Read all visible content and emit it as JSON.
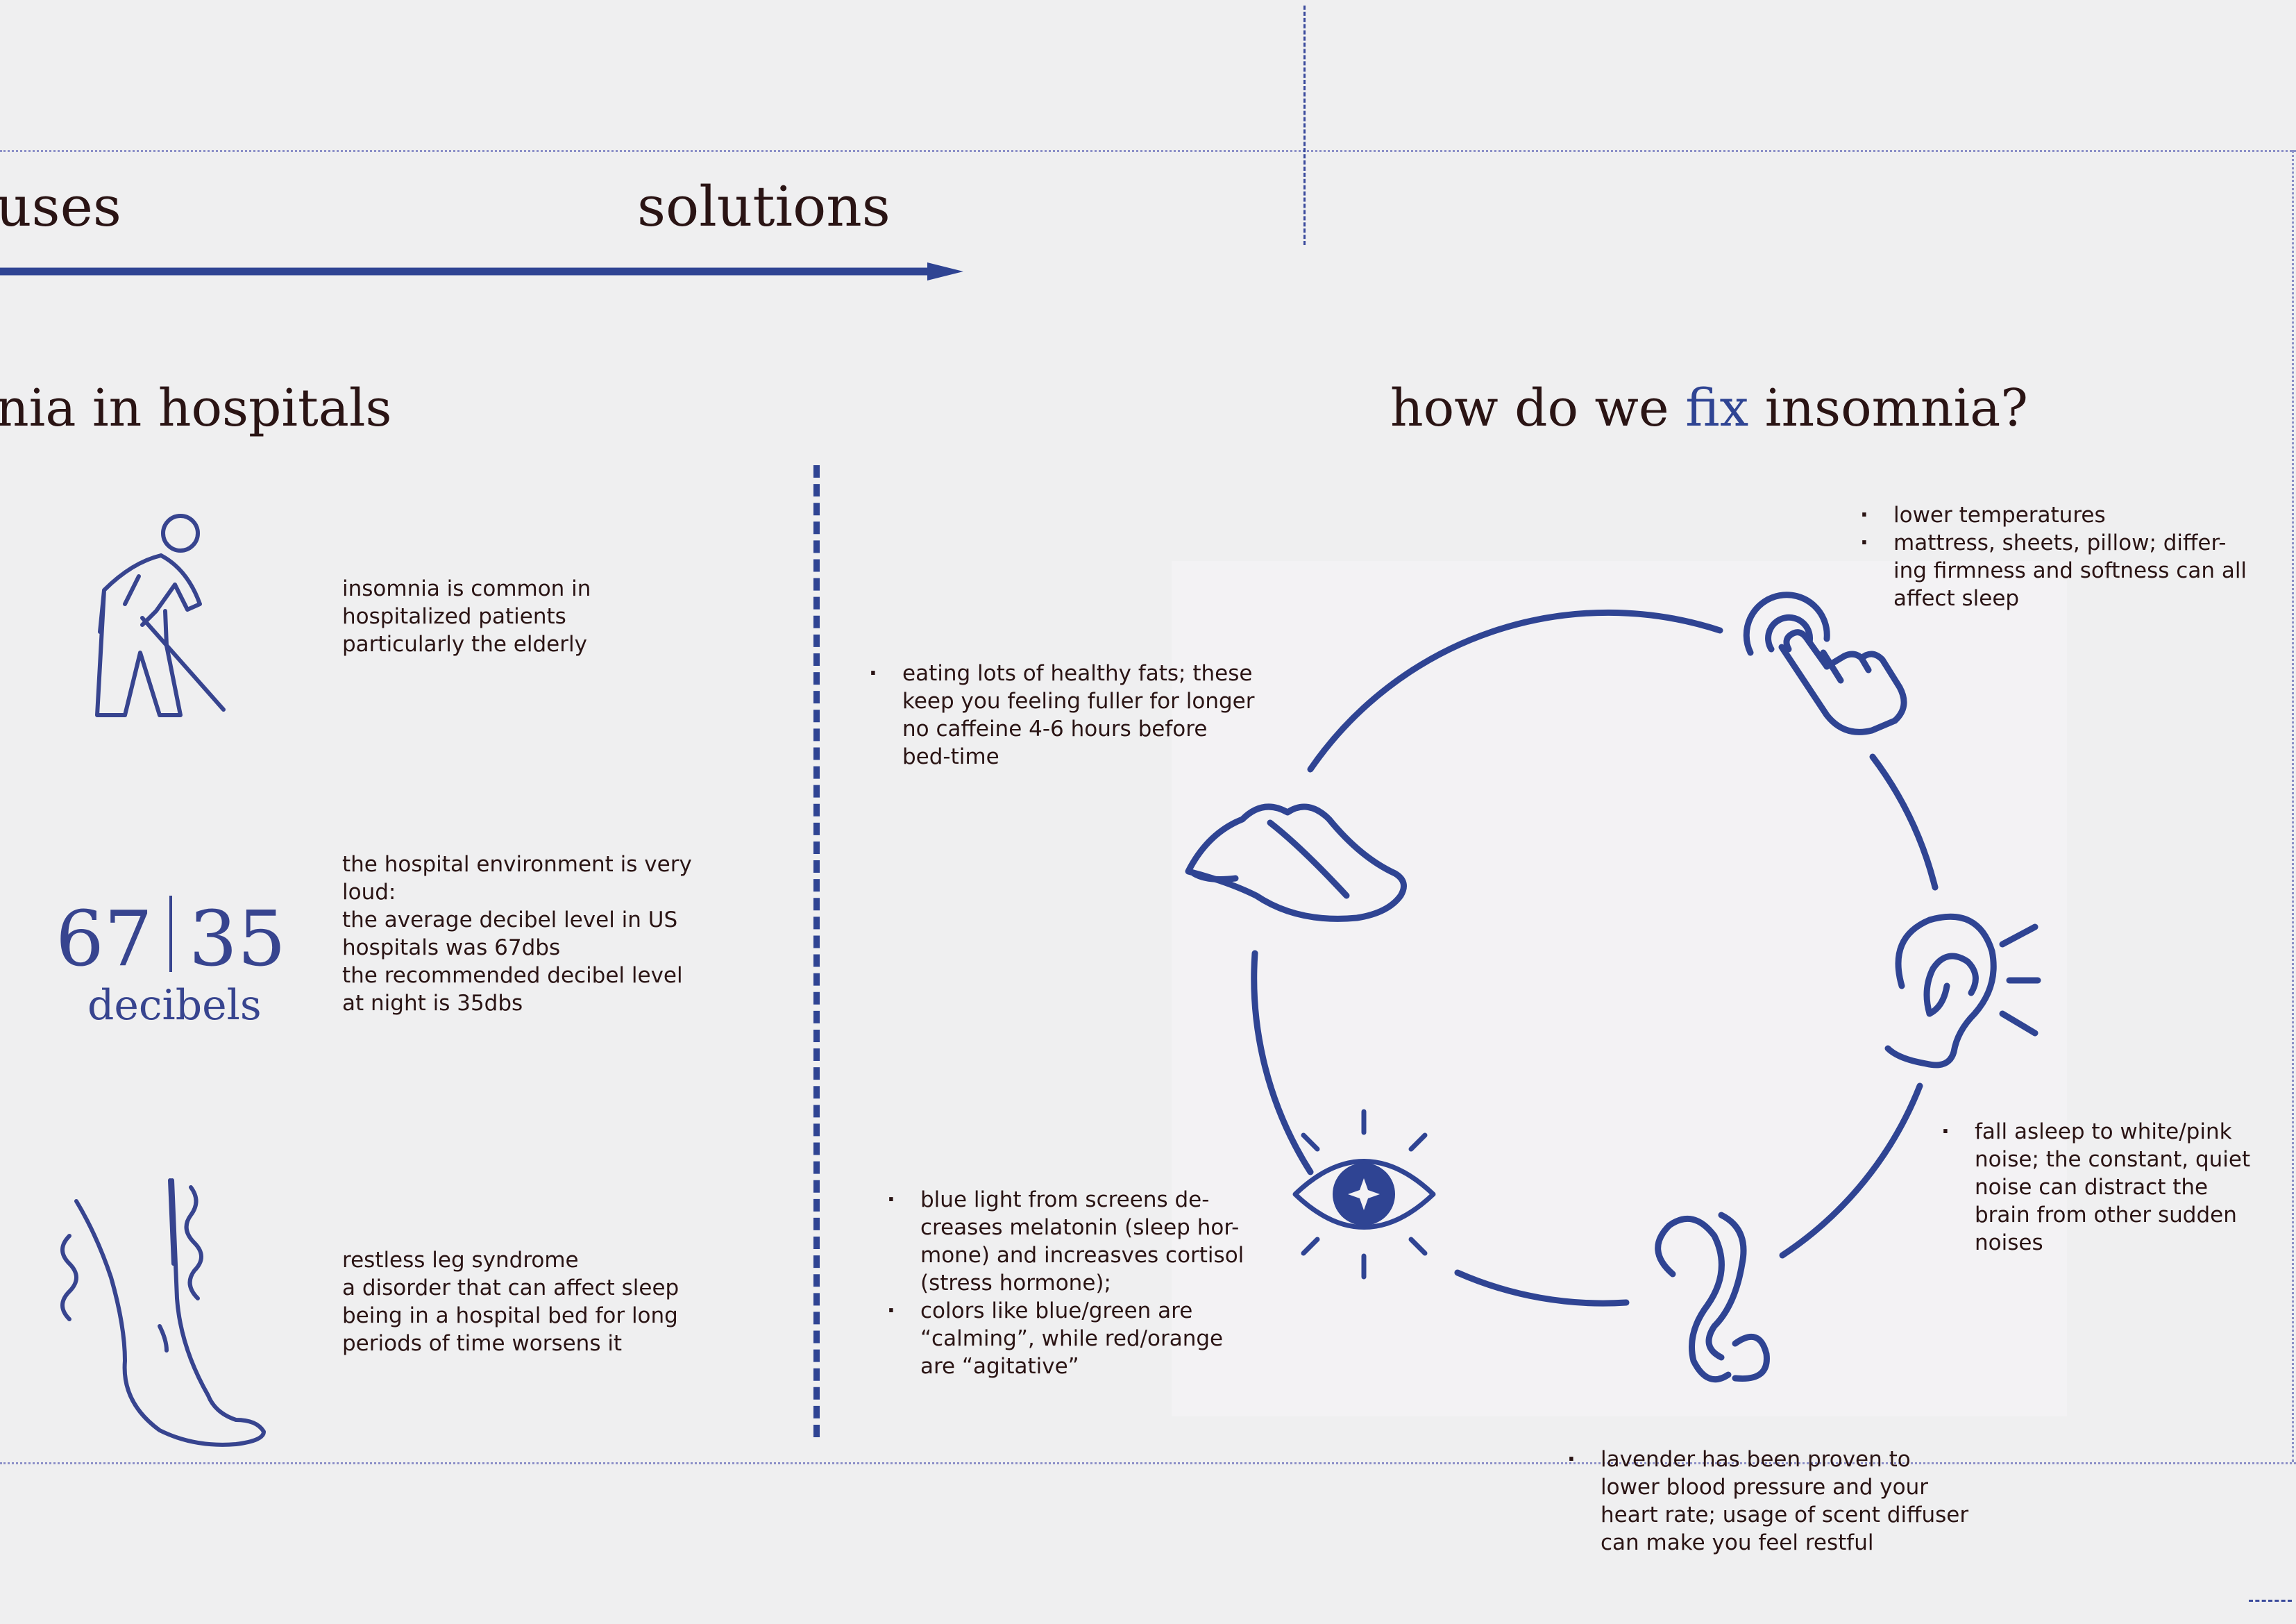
{
  "header": {
    "causes_fragment": "uses",
    "solutions_label": "solutions"
  },
  "left": {
    "title_fragment": "nia in hospitals",
    "items": [
      {
        "icon": "elderly-person-icon",
        "text": [
          "insomnia is common in",
          "hospitalized patients",
          "particularly the elderly"
        ]
      },
      {
        "stat_left": "67",
        "stat_right": "35",
        "stat_unit": "decibels",
        "text": [
          "the hospital environment is very",
          "loud:",
          "the average decibel level in US",
          "hospitals was 67dbs",
          "the recommended decibel level",
          "at night is 35dbs"
        ]
      },
      {
        "icon": "restless-leg-icon",
        "text": [
          "restless leg syndrome",
          "a disorder that can affect sleep",
          "being in a hospital bed for long",
          "periods of time worsens it"
        ]
      }
    ]
  },
  "right": {
    "title_before": "how do we ",
    "title_accent": "fix",
    "title_after": " insomnia?",
    "touch_bullets": [
      "lower temperatures",
      "mattress, sheets, pillow; differ-ing firmness and softness can all affect sleep"
    ],
    "taste_bullet": "eating lots of healthy fats; these keep you feeling fuller for longer no caffeine 4-6 hours before bed-time",
    "hearing_bullet": "fall asleep to white/pink noise; the constant, quiet noise can distract the brain from other sudden noises",
    "sight_bullets": [
      "blue light from screens de-creases melatonin (sleep hor-mone) and increasves cortisol (stress hormone);",
      "colors like blue/green are “calming”, while red/orange are “agitative”"
    ],
    "smell_bullet": "lavender has been proven to lower blood pressure and your heart rate; usage of scent diffuser can make you feel restful"
  },
  "colors": {
    "accent": "#2f4493",
    "text": "#2a1414",
    "background": "#efeff0",
    "dotted_line": "#8c90c8"
  }
}
